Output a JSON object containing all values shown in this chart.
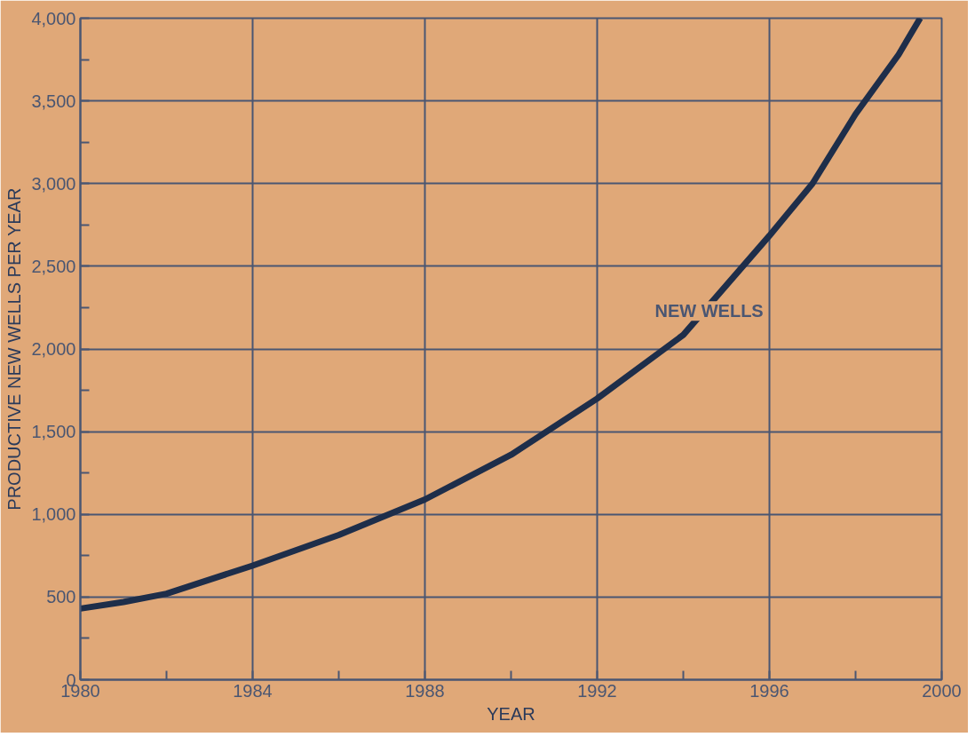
{
  "chart_data": {
    "type": "line",
    "xlabel": "YEAR",
    "ylabel": "PRODUCTIVE NEW WELLS PER YEAR",
    "x": [
      1980,
      1981,
      1982,
      1984,
      1986,
      1988,
      1990,
      1992,
      1994,
      1996,
      1997,
      1998,
      1999,
      1999.5
    ],
    "series": [
      {
        "color": "#1e2e4a",
        "values": [
          430,
          470,
          520,
          690,
          875,
          1090,
          1360,
          1700,
          2085,
          2685,
          3000,
          3420,
          3780,
          4000
        ]
      }
    ],
    "xlim": [
      1980,
      2000
    ],
    "ylim": [
      0,
      4000
    ],
    "xticks": [
      1980,
      {
        "value": 1982,
        "label": null
      },
      1984,
      {
        "value": 1986,
        "label": null
      },
      1988,
      {
        "value": 1990,
        "label": null
      },
      1992,
      {
        "value": 1994,
        "label": null
      },
      1996,
      {
        "value": 1998,
        "label": null
      },
      2000
    ],
    "yticks": [
      0,
      {
        "value": 250,
        "label": null
      },
      500,
      {
        "value": 750,
        "label": null
      },
      {
        "value": 1000,
        "label": "1,000"
      },
      {
        "value": 1250,
        "label": null
      },
      {
        "value": 1500,
        "label": "1,500"
      },
      {
        "value": 1750,
        "label": null
      },
      {
        "value": 2000,
        "label": "2,000"
      },
      {
        "value": 2250,
        "label": null
      },
      {
        "value": 2500,
        "label": "2,500"
      },
      {
        "value": 2750,
        "label": null
      },
      {
        "value": 3000,
        "label": "3,000"
      },
      {
        "value": 3250,
        "label": null
      },
      {
        "value": 3500,
        "label": "3,500"
      },
      {
        "value": 3750,
        "label": null
      },
      {
        "value": 4000,
        "label": "4,000"
      }
    ],
    "annotations": [
      {
        "text": "NEW WELLS",
        "x": 1994.6,
        "y": 2230
      }
    ],
    "grid": true,
    "marker": "none",
    "line_style": "solid"
  }
}
